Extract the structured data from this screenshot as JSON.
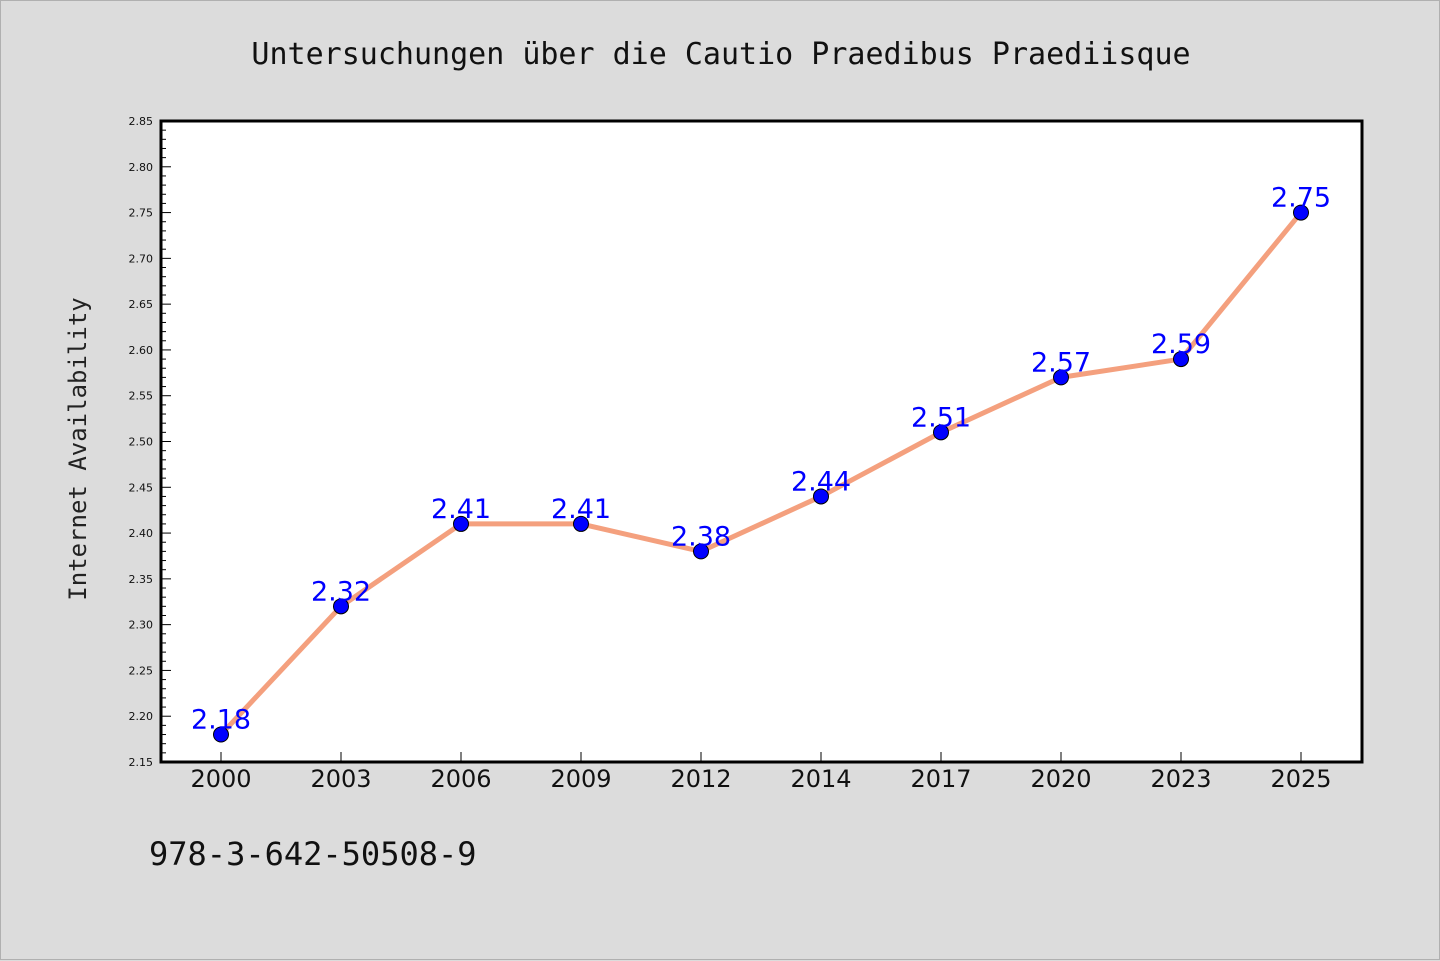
{
  "chart_data": {
    "type": "line",
    "title": "Untersuchungen über die Cautio Praedibus Praediisque",
    "xlabel": "",
    "ylabel": "Internet Availability",
    "categories": [
      "2000",
      "2003",
      "2006",
      "2009",
      "2012",
      "2014",
      "2017",
      "2020",
      "2023",
      "2025"
    ],
    "series": [
      {
        "values": [
          2.18,
          2.32,
          2.41,
          2.41,
          2.38,
          2.44,
          2.51,
          2.57,
          2.59,
          2.75
        ],
        "data_labels": [
          "2.18",
          "2.32",
          "2.41",
          "2.41",
          "2.38",
          "2.44",
          "2.51",
          "2.57",
          "2.59",
          "2.75"
        ],
        "line_color": "#f4a07e",
        "marker_color": "#0000ff"
      }
    ],
    "ylim": [
      2.15,
      2.85
    ],
    "yticks": [
      "2.15",
      "2.20",
      "2.25",
      "2.30",
      "2.35",
      "2.40",
      "2.45",
      "2.50",
      "2.55",
      "2.60",
      "2.65",
      "2.70",
      "2.75",
      "2.80",
      "2.85"
    ],
    "grid": false,
    "legend": "none"
  },
  "footer": {
    "isbn": "978-3-642-50508-9"
  },
  "colors": {
    "background": "#dcdcdc",
    "plot_background": "#ffffff",
    "line": "#f4a07e",
    "marker": "#0000ff",
    "data_label": "#0000ff"
  }
}
